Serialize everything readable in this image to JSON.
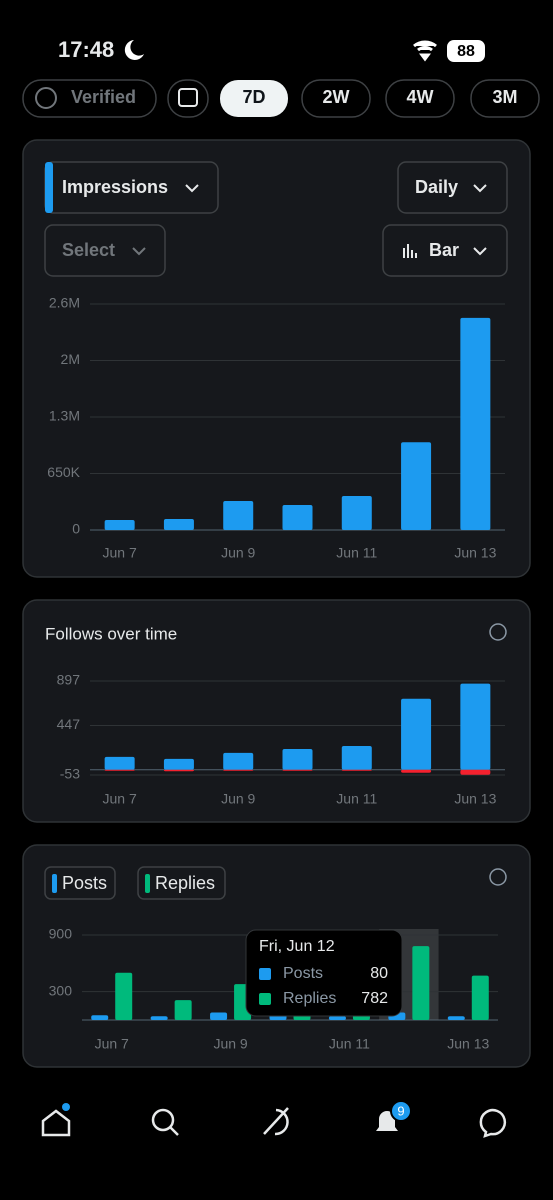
{
  "status_bar": {
    "time": "17:48",
    "battery": "88"
  },
  "filters": {
    "verified": "Verified",
    "ranges": [
      "7D",
      "2W",
      "4W",
      "3M"
    ]
  },
  "controls": {
    "metric": "Impressions",
    "interval": "Daily",
    "compare": "Select",
    "chart_style": "Bar"
  },
  "chart_data": [
    {
      "type": "bar",
      "categories": [
        "Jun 7",
        null,
        "Jun 9",
        null,
        "Jun 11",
        null,
        "Jun 13"
      ],
      "series": [
        {
          "color": "#1d9bf0",
          "values": [
            115000,
            127000,
            334000,
            288000,
            391000,
            1010000,
            2440000
          ]
        }
      ],
      "ylim": [
        0,
        2600000
      ],
      "yticks": [
        0,
        {
          "value": 650000,
          "label": "650K"
        },
        {
          "value": 1300000,
          "label": "1.3M"
        },
        {
          "value": 1950000,
          "label": "2M"
        },
        {
          "value": 2600000,
          "label": "2.6M"
        }
      ],
      "grid": true
    },
    {
      "type": "bar",
      "title": "Follows over time",
      "categories": [
        "Jun 7",
        null,
        "Jun 9",
        null,
        "Jun 11",
        null,
        "Jun 13"
      ],
      "series": [
        {
          "color": "#1d9bf0",
          "values": [
            130,
            110,
            170,
            210,
            240,
            717,
            870
          ]
        },
        {
          "color": "#f4212e",
          "values": [
            -10,
            -15,
            -8,
            -8,
            -10,
            -30,
            -50
          ]
        }
      ],
      "ylim": [
        -53,
        897
      ],
      "yticks": [
        -53,
        447,
        897
      ],
      "grid": true,
      "stacked": true
    },
    {
      "type": "bar",
      "categories": [
        "Jun 7",
        null,
        "Jun 9",
        null,
        "Jun 11",
        null,
        "Jun 13"
      ],
      "series": [
        {
          "name": "Posts",
          "color": "#1d9bf0",
          "values": [
            50,
            40,
            80,
            60,
            40,
            80,
            40
          ]
        },
        {
          "name": "Replies",
          "color": "#00ba7c",
          "values": [
            500,
            210,
            380,
            150,
            150,
            782,
            470
          ]
        }
      ],
      "ylim": [
        0,
        900
      ],
      "yticks": [
        300,
        900
      ],
      "grid": true,
      "tooltip": {
        "title": "Fri, Jun 12",
        "category": 5
      }
    }
  ],
  "nav": {
    "notifications": "9"
  }
}
